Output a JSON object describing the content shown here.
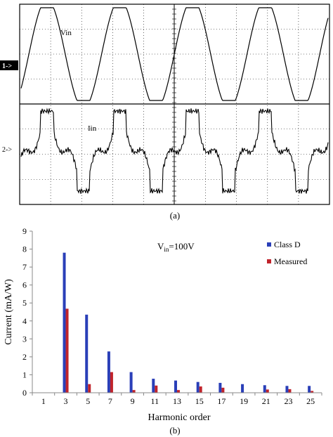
{
  "scope": {
    "channel1_marker": "1->",
    "channel2_marker": "2->",
    "trace1_label": "Vin",
    "trace2_label": "Iin",
    "caption": "(a)",
    "colors": {
      "grid": "#000000",
      "trace": "#000000",
      "marker_bg": "#000000",
      "marker_fg": "#ffffff"
    }
  },
  "chart_data": {
    "type": "bar",
    "categories": [
      "1",
      "3",
      "5",
      "7",
      "9",
      "11",
      "13",
      "15",
      "17",
      "19",
      "21",
      "23",
      "25"
    ],
    "series": [
      {
        "name": "Class D",
        "color": "#2a3fb8",
        "values": [
          0,
          7.8,
          4.35,
          2.3,
          1.15,
          0.78,
          0.68,
          0.6,
          0.55,
          0.48,
          0.42,
          0.38,
          0.38
        ]
      },
      {
        "name": "Measured",
        "color": "#c0232b",
        "values": [
          0,
          4.68,
          0.48,
          1.15,
          0.15,
          0.4,
          0.15,
          0.35,
          0.28,
          0,
          0.18,
          0.2,
          0.1
        ]
      }
    ],
    "xlabel": "Harmonic order",
    "ylabel": "Current (mA/W)",
    "ylim": [
      0,
      9
    ],
    "yticks": [
      "0",
      "1",
      "2",
      "3",
      "4",
      "5",
      "6",
      "7",
      "8",
      "9"
    ],
    "annotation": {
      "main": "V",
      "sub": "in",
      "rest": "=100V"
    },
    "legend_position": "top-right",
    "grid": false,
    "caption": "(b)"
  }
}
